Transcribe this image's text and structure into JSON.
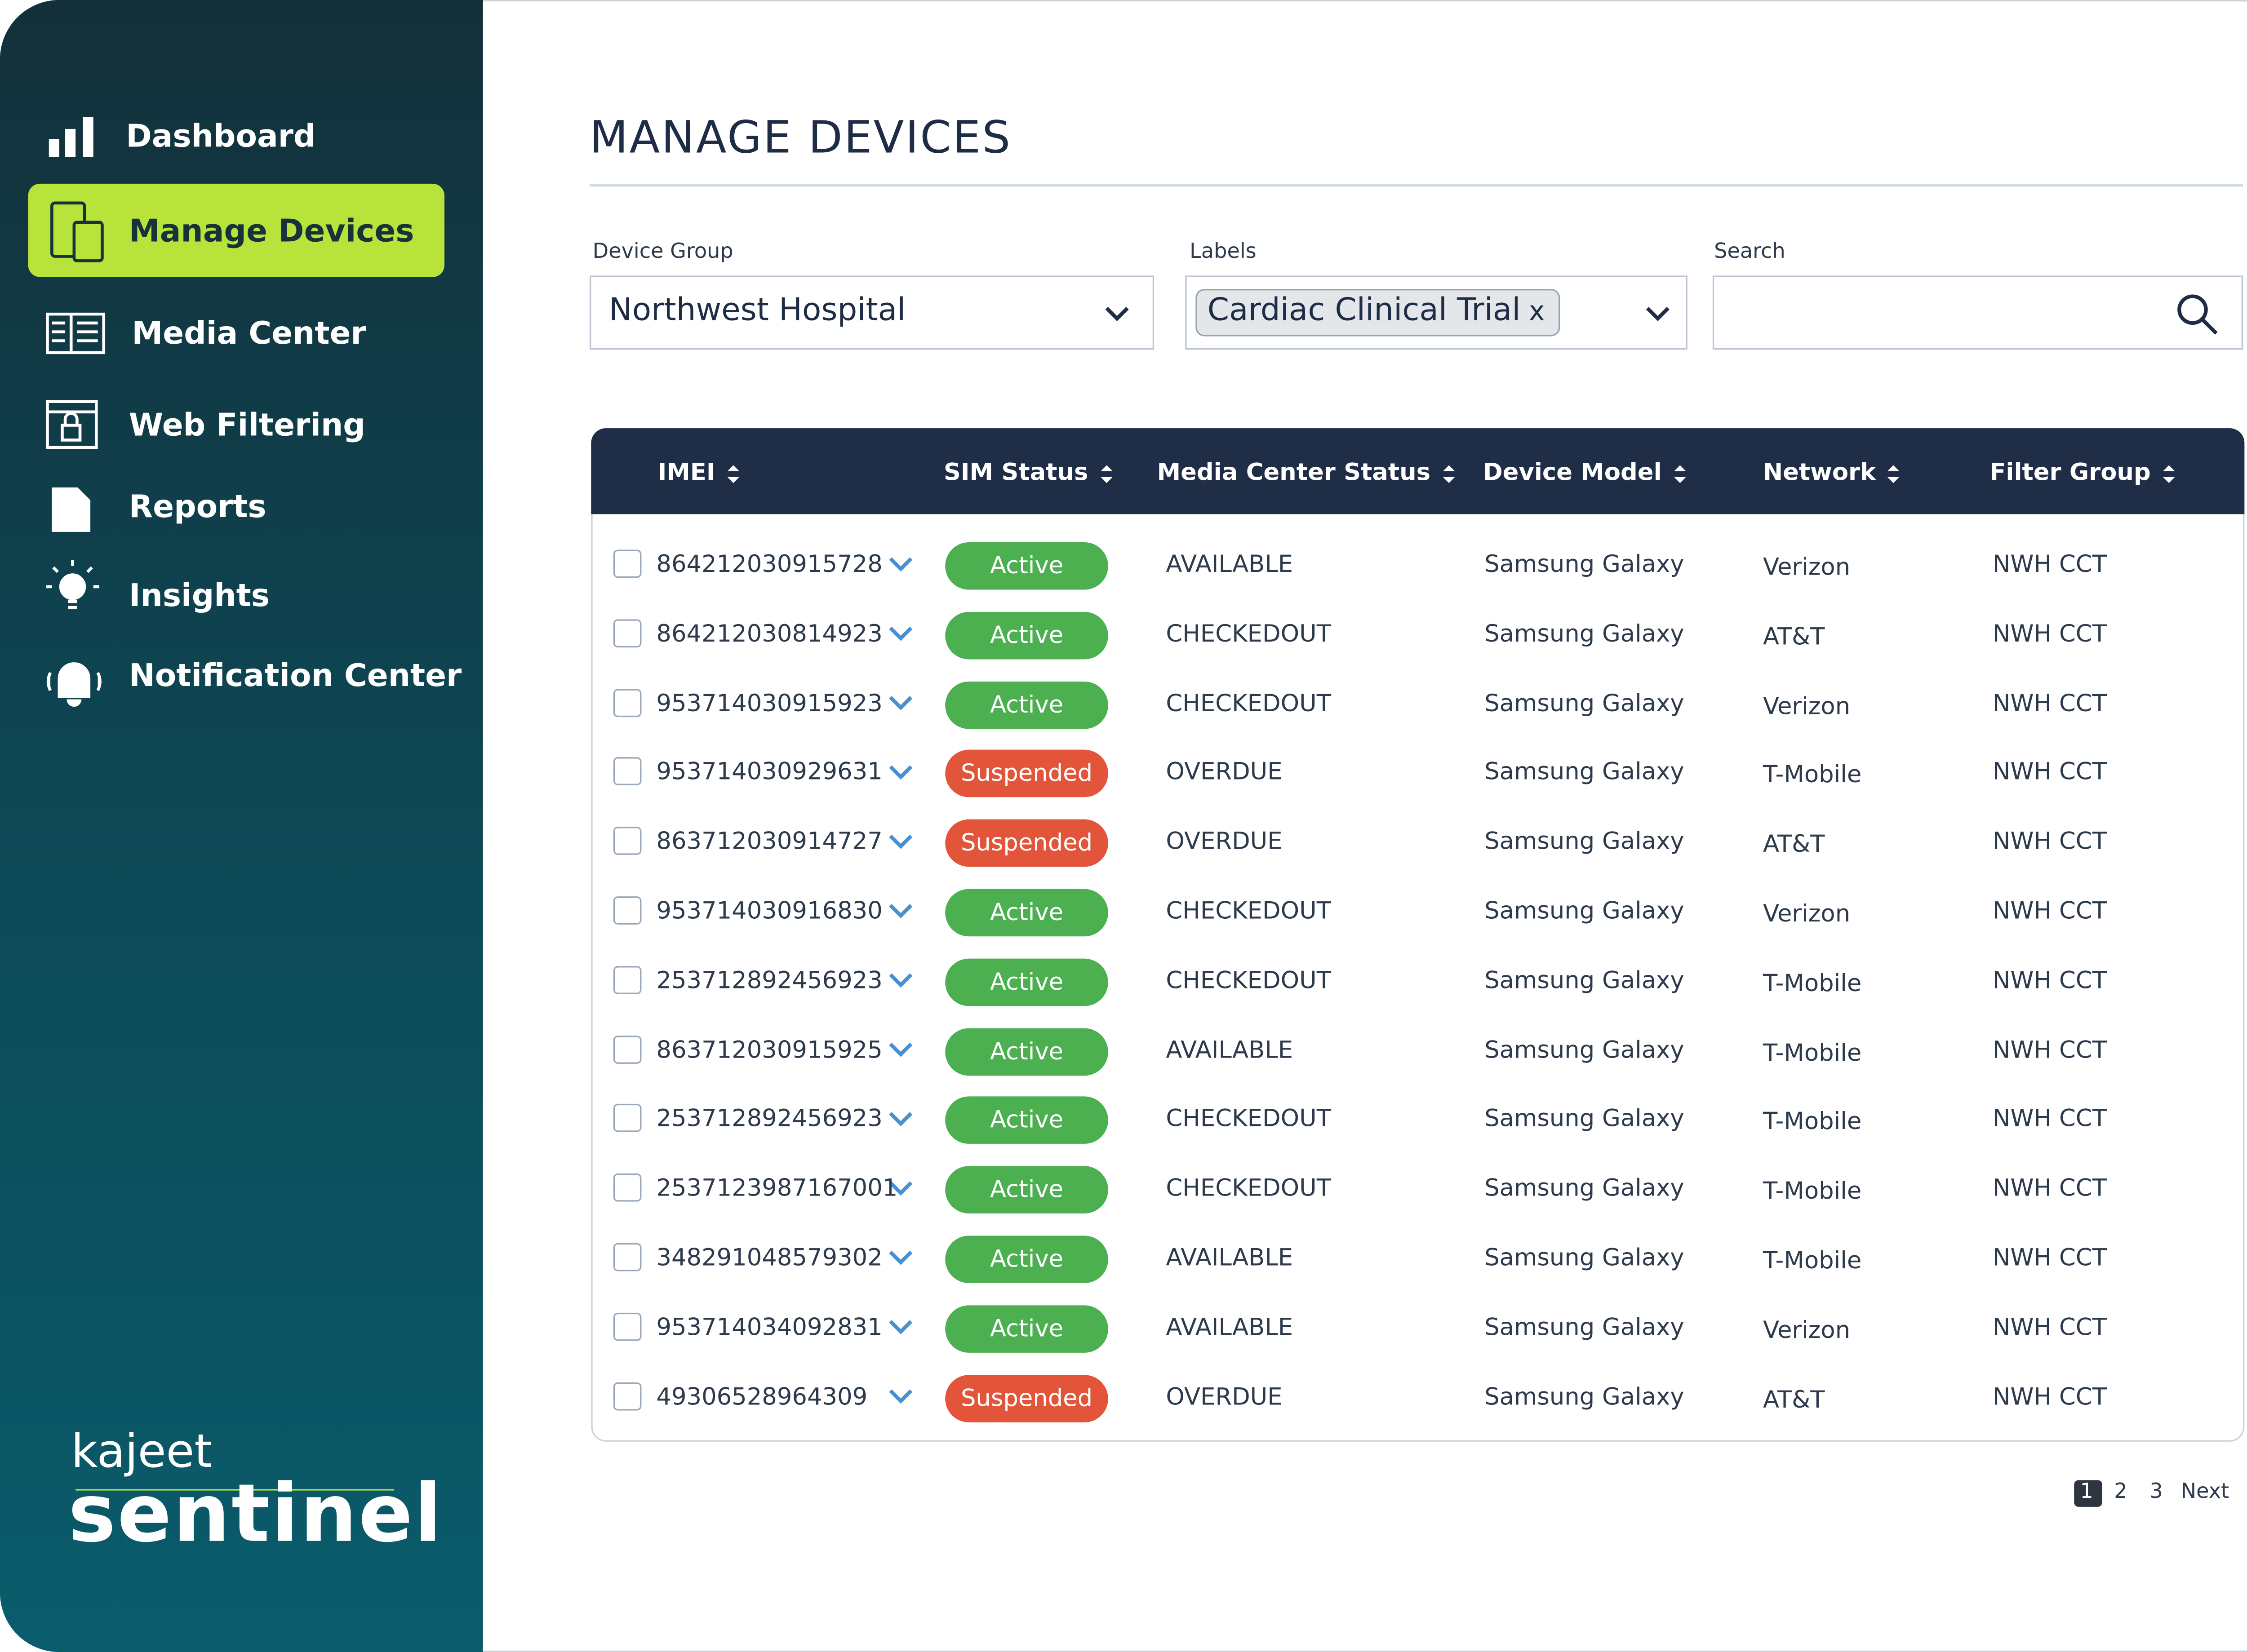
{
  "nav": [
    {
      "label": "Dashboard"
    },
    {
      "label": "Manage Devices"
    },
    {
      "label": "Media Center"
    },
    {
      "label": "Web Filtering"
    },
    {
      "label": "Reports"
    },
    {
      "label": "Insights"
    },
    {
      "label": "Notification Center"
    }
  ],
  "brand": {
    "top": "kajeet",
    "bottom": "sentinel"
  },
  "header": {
    "title": "MANAGE DEVICES"
  },
  "filters": [
    {
      "label": "Device Group",
      "value": "Northwest Hospital"
    },
    {
      "label": "Labels",
      "chip": "Cardiac Clinical Trial",
      "chip_close": "x"
    },
    {
      "label": "Search"
    }
  ],
  "table": {
    "columns": [
      "IMEI",
      "SIM Status",
      "Media Center Status",
      "Device Model",
      "Network",
      "Filter Group"
    ],
    "rows": [
      [
        "864212030915728",
        "Active",
        "AVAILABLE",
        "Samsung Galaxy",
        "Verizon",
        "NWH CCT"
      ],
      [
        "864212030814923",
        "Active",
        "CHECKEDOUT",
        "Samsung Galaxy",
        "AT&T",
        "NWH CCT"
      ],
      [
        "953714030915923",
        "Active",
        "CHECKEDOUT",
        "Samsung Galaxy",
        "Verizon",
        "NWH CCT"
      ],
      [
        "953714030929631",
        "Suspended",
        "OVERDUE",
        "Samsung Galaxy",
        "T-Mobile",
        "NWH CCT"
      ],
      [
        "863712030914727",
        "Suspended",
        "OVERDUE",
        "Samsung Galaxy",
        "AT&T",
        "NWH CCT"
      ],
      [
        "953714030916830",
        "Active",
        "CHECKEDOUT",
        "Samsung Galaxy",
        "Verizon",
        "NWH CCT"
      ],
      [
        "253712892456923",
        "Active",
        "CHECKEDOUT",
        "Samsung Galaxy",
        "T-Mobile",
        "NWH CCT"
      ],
      [
        "863712030915925",
        "Active",
        "AVAILABLE",
        "Samsung Galaxy",
        "T-Mobile",
        "NWH CCT"
      ],
      [
        "253712892456923",
        "Active",
        "CHECKEDOUT",
        "Samsung Galaxy",
        "T-Mobile",
        "NWH CCT"
      ],
      [
        "2537123987167001",
        "Active",
        "CHECKEDOUT",
        "Samsung Galaxy",
        "T-Mobile",
        "NWH CCT"
      ],
      [
        "348291048579302",
        "Active",
        "AVAILABLE",
        "Samsung Galaxy",
        "T-Mobile",
        "NWH CCT"
      ],
      [
        "953714034092831",
        "Active",
        "AVAILABLE",
        "Samsung Galaxy",
        "Verizon",
        "NWH CCT"
      ],
      [
        "49306528964309",
        "Suspended",
        "OVERDUE",
        "Samsung Galaxy",
        "AT&T",
        "NWH CCT"
      ]
    ]
  },
  "pagination": [
    "1",
    "2",
    "3",
    "Next"
  ]
}
